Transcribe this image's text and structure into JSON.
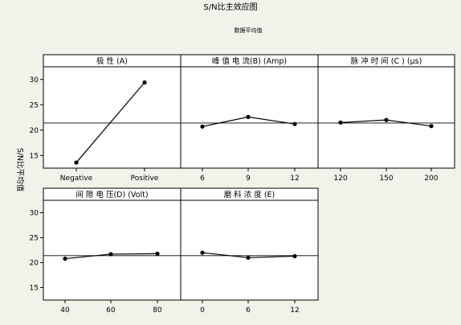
{
  "title": "S/N比主效应图",
  "subtitle": "数据平均值",
  "ylabel": "S/N比平均值",
  "colors": {
    "background": "#f2f1ea",
    "panel": "#ffffff",
    "line": "#000000"
  },
  "chart_data": {
    "type": "line",
    "title": "S/N比主效应图",
    "subtitle": "数据平均值",
    "ylabel": "S/N比平均值",
    "ylim": [
      12.5,
      32.5
    ],
    "yticks": [
      15,
      20,
      25,
      30
    ],
    "reference_line": 21.4,
    "grid": false,
    "panels": [
      {
        "name": "极 性 (A)",
        "categories": [
          "Negative",
          "Positive"
        ],
        "values": [
          13.6,
          29.4
        ]
      },
      {
        "name": "峰 值 电 流(B) (Amp)",
        "categories": [
          "6",
          "9",
          "12"
        ],
        "values": [
          20.7,
          22.6,
          21.2
        ]
      },
      {
        "name": "脉 冲 时 间 (C ) (µs)",
        "categories": [
          "120",
          "150",
          "200"
        ],
        "values": [
          21.5,
          22.0,
          20.8
        ]
      },
      {
        "name": "间 隙 电 压(D) (Volt)",
        "categories": [
          "40",
          "60",
          "80"
        ],
        "values": [
          20.8,
          21.7,
          21.8
        ]
      },
      {
        "name": "磨 料 浓 度          (E)",
        "categories": [
          "0",
          "6",
          "12"
        ],
        "values": [
          22.0,
          21.0,
          21.3
        ]
      }
    ]
  }
}
